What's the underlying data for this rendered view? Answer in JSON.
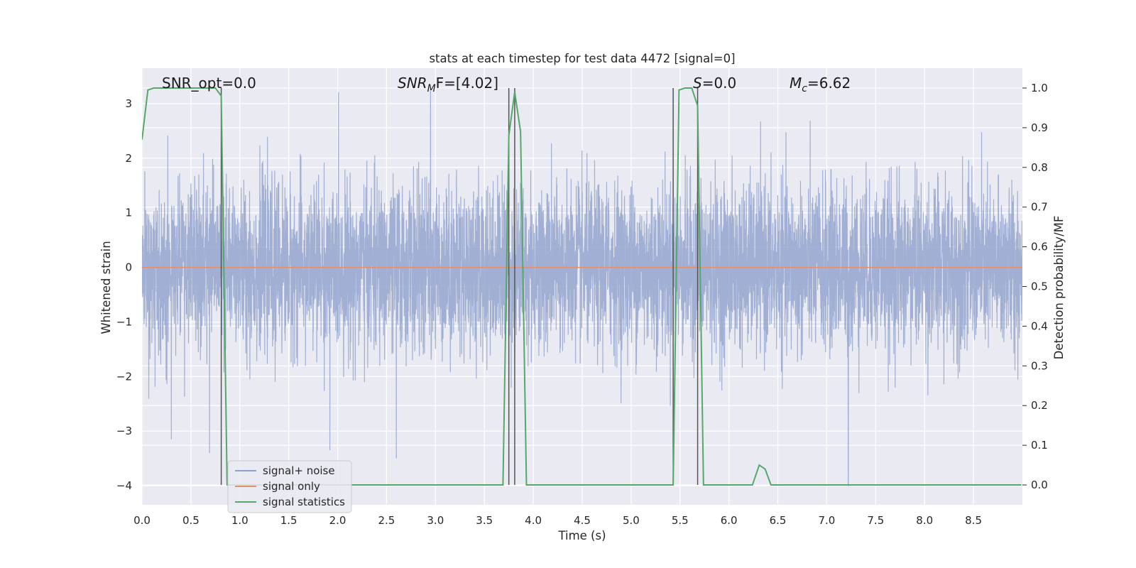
{
  "chart_data": {
    "type": "line",
    "title": "stats at each timestep for test data 4472 [signal=0]",
    "xlabel": "Time (s)",
    "ylabel": "Whitened strain",
    "y2label": "Detection probability/MF",
    "xlim": [
      0.0,
      9.0
    ],
    "ylim": [
      -4.35,
      3.65
    ],
    "y2lim": [
      -0.05,
      1.05
    ],
    "x_ticks": [
      0.0,
      0.5,
      1.0,
      1.5,
      2.0,
      2.5,
      3.0,
      3.5,
      4.0,
      4.5,
      5.0,
      5.5,
      6.0,
      6.5,
      7.0,
      7.5,
      8.0,
      8.5
    ],
    "x_tick_labels": [
      "0.0",
      "0.5",
      "1.0",
      "1.5",
      "2.0",
      "2.5",
      "3.0",
      "3.5",
      "4.0",
      "4.5",
      "5.0",
      "5.5",
      "6.0",
      "6.5",
      "7.0",
      "7.5",
      "8.0",
      "8.5"
    ],
    "y_ticks": [
      3,
      2,
      1,
      0,
      -1,
      -2,
      -3,
      -4
    ],
    "y_tick_labels": [
      "3",
      "2",
      "1",
      "0",
      "−1",
      "−2",
      "−3",
      "−4"
    ],
    "y2_ticks": [
      1.0,
      0.9,
      0.8,
      0.7,
      0.6,
      0.5,
      0.4,
      0.3,
      0.2,
      0.1,
      0.0
    ],
    "y2_tick_labels": [
      "1.0",
      "0.9",
      "0.8",
      "0.7",
      "0.6",
      "0.5",
      "0.4",
      "0.3",
      "0.2",
      "0.1",
      "0.0"
    ],
    "grid": true,
    "legend_position": "lower-left",
    "annotations": {
      "snr_opt": "SNR_opt=0.0",
      "snr_mf_sym": "SNR",
      "snr_mf_sub": "M",
      "snr_mf_rest": "F=[4.02]",
      "s_sym": "S",
      "s_rest": "=0.0",
      "mc_sym": "M",
      "mc_sub": "c",
      "mc_rest": "=6.62"
    },
    "series": [
      {
        "name": "signal+ noise",
        "color": "#8da0cb",
        "description_values": "whitened noise, roughly within [-2.2, 2.2] with spikes to about 3.3 and -4.0",
        "sample_rate_hz": 2048,
        "noise_sigma": 0.75,
        "spikes": [
          [
            2.95,
            3.3
          ],
          [
            0.3,
            -3.15
          ],
          [
            1.92,
            -3.35
          ],
          [
            2.6,
            -3.5
          ],
          [
            7.22,
            -4.0
          ],
          [
            0.69,
            -3.4
          ]
        ]
      },
      {
        "name": "signal only",
        "color": "#e5906a",
        "x": [
          0.0,
          9.0
        ],
        "y": [
          0.0,
          0.0
        ]
      },
      {
        "name": "signal statistics",
        "color": "#55a868",
        "axis": "right",
        "x": [
          0.0,
          0.06,
          0.12,
          0.18,
          0.5,
          0.75,
          0.81,
          0.87,
          1.0,
          3.69,
          3.75,
          3.81,
          3.87,
          3.93,
          5.43,
          5.49,
          5.55,
          5.62,
          5.68,
          5.74,
          6.24,
          6.31,
          6.37,
          6.43,
          8.99
        ],
        "y": [
          0.87,
          0.995,
          1.0,
          1.0,
          1.0,
          1.0,
          0.98,
          0.0,
          0.0,
          0.0,
          0.88,
          0.99,
          0.89,
          0.0,
          0.0,
          0.995,
          1.0,
          1.0,
          0.955,
          0.0,
          0.0,
          0.05,
          0.04,
          0.0,
          0.0
        ]
      }
    ],
    "vertical_markers": {
      "color": "#555555",
      "x": [
        0.81,
        3.75,
        3.81,
        5.43,
        5.68
      ],
      "y2_top": 1.0,
      "y2_bottom": 0.0
    },
    "colors": {
      "plot_background": "#eaeaf2",
      "grid": "#ffffff"
    }
  }
}
